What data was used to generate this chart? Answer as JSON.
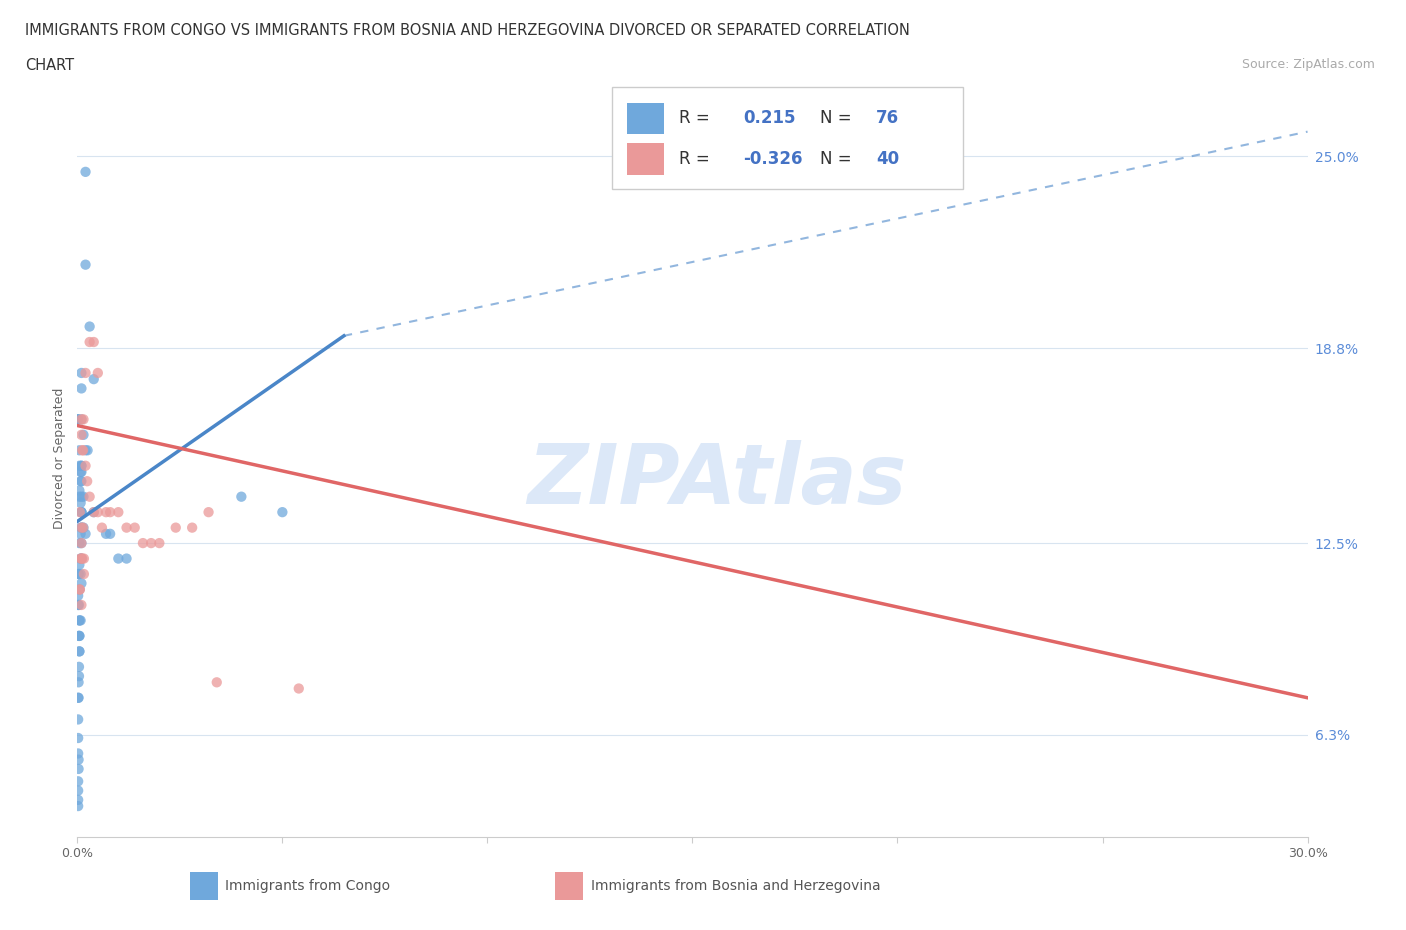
{
  "title_line1": "IMMIGRANTS FROM CONGO VS IMMIGRANTS FROM BOSNIA AND HERZEGOVINA DIVORCED OR SEPARATED CORRELATION",
  "title_line2": "CHART",
  "source_text": "Source: ZipAtlas.com",
  "ylabel": "Divorced or Separated",
  "xlim": [
    0.0,
    0.3
  ],
  "ylim": [
    0.03,
    0.275
  ],
  "xticks": [
    0.0,
    0.05,
    0.1,
    0.15,
    0.2,
    0.25,
    0.3
  ],
  "xtick_labels": [
    "0.0%",
    "",
    "",
    "",
    "",
    "",
    "30.0%"
  ],
  "yticks": [
    0.063,
    0.125,
    0.188,
    0.25
  ],
  "ytick_labels": [
    "6.3%",
    "12.5%",
    "18.8%",
    "25.0%"
  ],
  "congo_R": 0.215,
  "congo_N": 76,
  "bosnia_R": -0.326,
  "bosnia_N": 40,
  "congo_color": "#6fa8dc",
  "bosnia_color": "#ea9999",
  "trend_congo_color": "#4a86c8",
  "trend_bosnia_color": "#e06666",
  "watermark_color": "#dce8f8",
  "congo_x": [
    0.002,
    0.004,
    0.002,
    0.003,
    0.001,
    0.001,
    0.001,
    0.0015,
    0.002,
    0.0025,
    0.001,
    0.001,
    0.001,
    0.001,
    0.0015,
    0.0005,
    0.0005,
    0.0008,
    0.001,
    0.0008,
    0.0005,
    0.0005,
    0.0008,
    0.001,
    0.001,
    0.001,
    0.001,
    0.001,
    0.0015,
    0.001,
    0.0008,
    0.0005,
    0.0008,
    0.001,
    0.0005,
    0.0003,
    0.0003,
    0.0005,
    0.0008,
    0.001,
    0.0002,
    0.0002,
    0.0004,
    0.0005,
    0.0005,
    0.0008,
    0.0003,
    0.0005,
    0.0005,
    0.0005,
    0.0004,
    0.0004,
    0.0003,
    0.0003,
    0.0002,
    0.0002,
    0.0002,
    0.0002,
    0.0003,
    0.0003,
    0.0005,
    0.0002,
    0.0002,
    0.0002,
    0.0002,
    0.0001,
    0.0001,
    0.0002,
    0.04,
    0.05,
    0.002,
    0.004,
    0.007,
    0.008,
    0.01,
    0.012
  ],
  "congo_y": [
    0.215,
    0.178,
    0.245,
    0.195,
    0.165,
    0.175,
    0.18,
    0.16,
    0.155,
    0.155,
    0.15,
    0.148,
    0.145,
    0.15,
    0.14,
    0.155,
    0.15,
    0.148,
    0.14,
    0.145,
    0.14,
    0.142,
    0.138,
    0.135,
    0.135,
    0.13,
    0.135,
    0.13,
    0.13,
    0.125,
    0.128,
    0.125,
    0.12,
    0.12,
    0.118,
    0.115,
    0.115,
    0.11,
    0.115,
    0.112,
    0.108,
    0.105,
    0.105,
    0.1,
    0.1,
    0.1,
    0.095,
    0.095,
    0.09,
    0.09,
    0.085,
    0.082,
    0.08,
    0.075,
    0.075,
    0.068,
    0.062,
    0.057,
    0.055,
    0.052,
    0.095,
    0.048,
    0.045,
    0.042,
    0.04,
    0.165,
    0.165,
    0.165,
    0.14,
    0.135,
    0.128,
    0.135,
    0.128,
    0.128,
    0.12,
    0.12
  ],
  "bosnia_x": [
    0.002,
    0.003,
    0.004,
    0.005,
    0.0015,
    0.001,
    0.001,
    0.0012,
    0.0014,
    0.002,
    0.0024,
    0.003,
    0.004,
    0.005,
    0.006,
    0.007,
    0.008,
    0.01,
    0.012,
    0.014,
    0.016,
    0.018,
    0.02,
    0.024,
    0.028,
    0.032,
    0.054,
    0.0006,
    0.0006,
    0.0008,
    0.0006,
    0.001,
    0.001,
    0.001,
    0.0012,
    0.0014,
    0.0016,
    0.0016,
    0.001,
    0.034
  ],
  "bosnia_y": [
    0.18,
    0.19,
    0.19,
    0.18,
    0.165,
    0.165,
    0.16,
    0.155,
    0.155,
    0.15,
    0.145,
    0.14,
    0.135,
    0.135,
    0.13,
    0.135,
    0.135,
    0.135,
    0.13,
    0.13,
    0.125,
    0.125,
    0.125,
    0.13,
    0.13,
    0.135,
    0.078,
    0.135,
    0.11,
    0.12,
    0.11,
    0.125,
    0.12,
    0.13,
    0.12,
    0.13,
    0.115,
    0.12,
    0.105,
    0.08
  ],
  "grid_color": "#d8e4f0",
  "bg_color": "#ffffff",
  "congo_trend_x_start": 0.0,
  "congo_trend_x_solid_end": 0.065,
  "congo_trend_x_end": 0.3,
  "congo_trend_y_start": 0.132,
  "congo_trend_y_solid_end": 0.192,
  "congo_trend_y_end": 0.258,
  "bosnia_trend_x_start": 0.0,
  "bosnia_trend_x_end": 0.3,
  "bosnia_trend_y_start": 0.163,
  "bosnia_trend_y_end": 0.075
}
